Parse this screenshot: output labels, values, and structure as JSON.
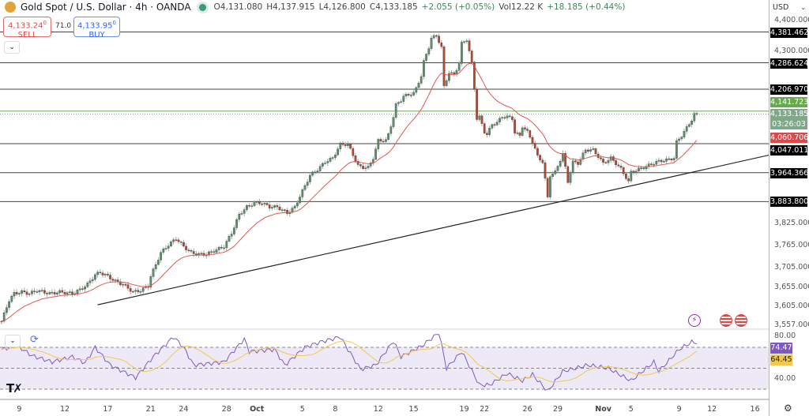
{
  "header": {
    "title": "Gold Spot / U.S. Dollar · 4h · OANDA",
    "open": "O4,131.080",
    "high": "H4,137.915",
    "low": "L4,126.800",
    "close": "C4,133.185",
    "change": "+2.055 (+0.05%)",
    "vol": "Vol12.22 K",
    "vol_change": "+18.185 (+0.44%)"
  },
  "trade": {
    "sell_price": "4,133.24",
    "sell_sup": "0",
    "sell_label": "SELL",
    "spread": "71.0",
    "buy_price": "4,133.95",
    "buy_sup": "0",
    "buy_label": "BUY"
  },
  "axis": {
    "currency": "USD",
    "settings_icon": "gear-icon"
  },
  "colors": {
    "up": "#5d8f6a",
    "down": "#b8472e",
    "ema": "#e0584f",
    "rsi": "#7e57c2",
    "rsi_ma": "#f2c94c",
    "level_line": "#555555",
    "resistance_green": "#6aa84f"
  },
  "chart_data": {
    "type": "candlestick",
    "y_scale": "log",
    "ylim": [
      3557,
      4400
    ],
    "price_ticks": [
      "4,400.000",
      "4,300.000",
      "3,825.000",
      "3,765.000",
      "3,705.000",
      "3,655.000",
      "3,605.000",
      "3,557.000"
    ],
    "price_tick_values": [
      4400,
      4300,
      3825,
      3765,
      3705,
      3655,
      3605,
      3557
    ],
    "x_ticks": [
      {
        "label": "9",
        "bar": 7
      },
      {
        "label": "12",
        "bar": 25
      },
      {
        "label": "17",
        "bar": 42
      },
      {
        "label": "21",
        "bar": 59
      },
      {
        "label": "24",
        "bar": 72
      },
      {
        "label": "28",
        "bar": 89
      },
      {
        "label": "Oct",
        "bar": 101
      },
      {
        "label": "5",
        "bar": 119
      },
      {
        "label": "8",
        "bar": 132
      },
      {
        "label": "12",
        "bar": 149
      },
      {
        "label": "15",
        "bar": 163
      },
      {
        "label": "19",
        "bar": 183
      },
      {
        "label": "22",
        "bar": 191
      },
      {
        "label": "26",
        "bar": 208
      },
      {
        "label": "29",
        "bar": 220
      },
      {
        "label": "Nov",
        "bar": 238
      },
      {
        "label": "5",
        "bar": 249
      },
      {
        "label": "9",
        "bar": 268
      },
      {
        "label": "12",
        "bar": 281
      },
      {
        "label": "16",
        "bar": 298
      }
    ],
    "close_path": [
      [
        1,
        3585
      ],
      [
        3,
        3621
      ],
      [
        5,
        3638
      ],
      [
        8,
        3642
      ],
      [
        11,
        3638
      ],
      [
        14,
        3646
      ],
      [
        19,
        3638
      ],
      [
        23,
        3642
      ],
      [
        28,
        3638
      ],
      [
        31,
        3648
      ],
      [
        34,
        3662
      ],
      [
        37,
        3687
      ],
      [
        39,
        3693
      ],
      [
        42,
        3683
      ],
      [
        45,
        3670
      ],
      [
        48,
        3662
      ],
      [
        52,
        3642
      ],
      [
        55,
        3646
      ],
      [
        58,
        3658
      ],
      [
        59,
        3683
      ],
      [
        61,
        3714
      ],
      [
        63,
        3745
      ],
      [
        66,
        3766
      ],
      [
        69,
        3783
      ],
      [
        72,
        3762
      ],
      [
        75,
        3745
      ],
      [
        78,
        3741
      ],
      [
        81,
        3741
      ],
      [
        84,
        3750
      ],
      [
        88,
        3762
      ],
      [
        91,
        3798
      ],
      [
        94,
        3848
      ],
      [
        97,
        3869
      ],
      [
        100,
        3880
      ],
      [
        103,
        3880
      ],
      [
        106,
        3869
      ],
      [
        109,
        3869
      ],
      [
        113,
        3852
      ],
      [
        116,
        3869
      ],
      [
        119,
        3913
      ],
      [
        122,
        3957
      ],
      [
        125,
        3973
      ],
      [
        128,
        3995
      ],
      [
        131,
        4006
      ],
      [
        134,
        4045
      ],
      [
        137,
        4045
      ],
      [
        139,
        4015
      ],
      [
        141,
        3984
      ],
      [
        143,
        3979
      ],
      [
        145,
        3979
      ],
      [
        147,
        4006
      ],
      [
        149,
        4056
      ],
      [
        152,
        4056
      ],
      [
        153,
        4074
      ],
      [
        155,
        4125
      ],
      [
        156,
        4160
      ],
      [
        158,
        4174
      ],
      [
        159,
        4186
      ],
      [
        163,
        4195
      ],
      [
        164,
        4209
      ],
      [
        166,
        4247
      ],
      [
        167,
        4290
      ],
      [
        169,
        4334
      ],
      [
        170,
        4363
      ],
      [
        172,
        4370
      ],
      [
        174,
        4334
      ],
      [
        175,
        4214
      ],
      [
        177,
        4257
      ],
      [
        179,
        4250
      ],
      [
        181,
        4285
      ],
      [
        182,
        4346
      ],
      [
        184,
        4358
      ],
      [
        186,
        4285
      ],
      [
        187,
        4209
      ],
      [
        188,
        4120
      ],
      [
        189,
        4125
      ],
      [
        191,
        4081
      ],
      [
        192,
        4074
      ],
      [
        194,
        4102
      ],
      [
        196,
        4109
      ],
      [
        198,
        4125
      ],
      [
        200,
        4125
      ],
      [
        202,
        4120
      ],
      [
        203,
        4079
      ],
      [
        205,
        4070
      ],
      [
        206,
        4097
      ],
      [
        208,
        4081
      ],
      [
        210,
        4052
      ],
      [
        212,
        4011
      ],
      [
        214,
        3995
      ],
      [
        216,
        3895
      ],
      [
        217,
        3957
      ],
      [
        219,
        3966
      ],
      [
        222,
        4018
      ],
      [
        224,
        3939
      ],
      [
        226,
        3995
      ],
      [
        228,
        3991
      ],
      [
        231,
        4029
      ],
      [
        234,
        4029
      ],
      [
        238,
        3991
      ],
      [
        241,
        4006
      ],
      [
        245,
        3975
      ],
      [
        248,
        3939
      ],
      [
        249,
        3966
      ],
      [
        254,
        3979
      ],
      [
        259,
        3995
      ],
      [
        264,
        4002
      ],
      [
        266,
        4006
      ],
      [
        267,
        4052
      ],
      [
        269,
        4070
      ],
      [
        271,
        4093
      ],
      [
        273,
        4116
      ],
      [
        274,
        4132
      ],
      [
        275,
        4133.185
      ]
    ],
    "levels": [
      {
        "value": 4381.462,
        "label": "4,381.462"
      },
      {
        "value": 4286.624,
        "label": "4,286.624"
      },
      {
        "value": 4206.97,
        "label": "4,206.970"
      },
      {
        "value": 4047.011,
        "label": "4,047.011"
      },
      {
        "value": 3964.366,
        "label": "3,964.366"
      },
      {
        "value": 3883.8,
        "label": "3,883.800"
      }
    ],
    "high_line": {
      "value": 4141.723,
      "label": "4,141.723"
    },
    "last_price": {
      "value": 4133.185,
      "label": "4,133.185",
      "countdown": "03:26:03"
    },
    "ema": {
      "value": 4060.706,
      "label": "4,060.706"
    },
    "trendline": [
      [
        38,
        3609
      ],
      [
        304,
        4015
      ]
    ],
    "rsi": {
      "levels": [
        70,
        50,
        30
      ],
      "ticks": [
        "80.00",
        "40.00"
      ],
      "tick_values": [
        80,
        40
      ],
      "value": "74.47",
      "ma_value": "64.45",
      "path": [
        [
          0,
          67.7
        ],
        [
          6,
          72
        ],
        [
          12,
          62
        ],
        [
          20,
          56
        ],
        [
          28,
          61
        ],
        [
          33,
          55
        ],
        [
          37,
          70
        ],
        [
          43,
          53
        ],
        [
          53,
          41
        ],
        [
          60,
          61
        ],
        [
          68,
          80
        ],
        [
          72,
          70
        ],
        [
          76,
          53
        ],
        [
          88,
          56
        ],
        [
          96,
          78
        ],
        [
          98,
          66
        ],
        [
          108,
          68
        ],
        [
          112,
          53
        ],
        [
          120,
          70
        ],
        [
          126,
          75
        ],
        [
          134,
          80
        ],
        [
          137,
          68
        ],
        [
          142,
          49
        ],
        [
          148,
          53
        ],
        [
          155,
          76
        ],
        [
          158,
          61
        ],
        [
          166,
          71
        ],
        [
          173,
          84
        ],
        [
          176,
          50
        ],
        [
          182,
          66
        ],
        [
          189,
          34
        ],
        [
          193,
          34
        ],
        [
          200,
          45
        ],
        [
          206,
          38
        ],
        [
          210,
          44
        ],
        [
          216,
          28
        ],
        [
          222,
          47
        ],
        [
          232,
          53
        ],
        [
          240,
          50
        ],
        [
          249,
          38
        ],
        [
          258,
          56
        ],
        [
          260,
          47
        ],
        [
          268,
          68
        ],
        [
          273,
          75
        ],
        [
          275,
          74.47
        ]
      ]
    }
  }
}
